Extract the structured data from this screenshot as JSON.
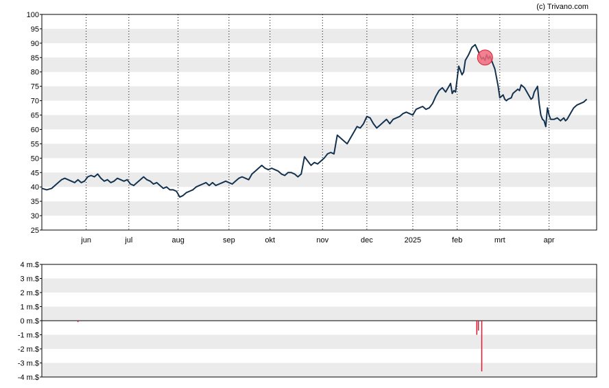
{
  "credit": "(c) Trivano.com",
  "colors": {
    "band": "#ebebeb",
    "price_line": "#12314f",
    "volume_bar": "#e0172e",
    "marker_fill": "#f06a7a",
    "marker_stroke": "#e0172e",
    "vgrid": "#000000"
  },
  "chart_data": [
    {
      "type": "line",
      "ylim": [
        25,
        100
      ],
      "yticks": [
        100,
        95,
        90,
        85,
        80,
        75,
        70,
        65,
        60,
        55,
        50,
        45,
        40,
        35,
        30,
        25
      ],
      "xlim": [
        0,
        338
      ],
      "month_ticks": [
        {
          "label": "jun",
          "x": 27
        },
        {
          "label": "jul",
          "x": 53
        },
        {
          "label": "aug",
          "x": 83
        },
        {
          "label": "sep",
          "x": 114
        },
        {
          "label": "okt",
          "x": 139
        },
        {
          "label": "nov",
          "x": 171
        },
        {
          "label": "dec",
          "x": 198
        },
        {
          "label": "2025",
          "x": 226
        },
        {
          "label": "feb",
          "x": 253
        },
        {
          "label": "mrt",
          "x": 279
        },
        {
          "label": "apr",
          "x": 309
        }
      ],
      "series": [
        {
          "points": [
            [
              0,
              39.5
            ],
            [
              3,
              39.0
            ],
            [
              6,
              39.5
            ],
            [
              8,
              40.5
            ],
            [
              10,
              41.5
            ],
            [
              12,
              42.5
            ],
            [
              14,
              43.0
            ],
            [
              16,
              42.5
            ],
            [
              18,
              42.0
            ],
            [
              20,
              41.5
            ],
            [
              22,
              42.5
            ],
            [
              24,
              41.5
            ],
            [
              26,
              42.0
            ],
            [
              28,
              43.5
            ],
            [
              30,
              44.0
            ],
            [
              32,
              43.5
            ],
            [
              34,
              44.5
            ],
            [
              36,
              43.0
            ],
            [
              38,
              42.0
            ],
            [
              40,
              42.5
            ],
            [
              42,
              41.5
            ],
            [
              44,
              42.0
            ],
            [
              46,
              43.0
            ],
            [
              48,
              42.5
            ],
            [
              50,
              42.0
            ],
            [
              52,
              42.5
            ],
            [
              54,
              41.0
            ],
            [
              56,
              40.5
            ],
            [
              58,
              41.5
            ],
            [
              60,
              42.5
            ],
            [
              62,
              43.5
            ],
            [
              64,
              42.5
            ],
            [
              66,
              42.0
            ],
            [
              68,
              41.0
            ],
            [
              70,
              41.5
            ],
            [
              72,
              40.5
            ],
            [
              74,
              39.5
            ],
            [
              76,
              40.0
            ],
            [
              78,
              39.0
            ],
            [
              80,
              39.0
            ],
            [
              82,
              38.5
            ],
            [
              84,
              36.5
            ],
            [
              86,
              37.0
            ],
            [
              88,
              38.0
            ],
            [
              90,
              38.5
            ],
            [
              92,
              39.0
            ],
            [
              94,
              40.0
            ],
            [
              96,
              40.5
            ],
            [
              98,
              41.0
            ],
            [
              100,
              41.5
            ],
            [
              102,
              40.5
            ],
            [
              104,
              41.5
            ],
            [
              106,
              40.5
            ],
            [
              108,
              41.0
            ],
            [
              110,
              41.5
            ],
            [
              112,
              42.0
            ],
            [
              114,
              41.5
            ],
            [
              116,
              41.0
            ],
            [
              118,
              42.0
            ],
            [
              120,
              43.0
            ],
            [
              122,
              43.5
            ],
            [
              124,
              43.0
            ],
            [
              126,
              42.5
            ],
            [
              128,
              44.5
            ],
            [
              130,
              45.5
            ],
            [
              132,
              46.5
            ],
            [
              134,
              47.5
            ],
            [
              136,
              46.5
            ],
            [
              138,
              46.0
            ],
            [
              140,
              46.5
            ],
            [
              142,
              46.0
            ],
            [
              144,
              45.5
            ],
            [
              146,
              44.5
            ],
            [
              148,
              44.0
            ],
            [
              150,
              45.0
            ],
            [
              152,
              45.0
            ],
            [
              154,
              44.5
            ],
            [
              156,
              43.5
            ],
            [
              158,
              44.5
            ],
            [
              160,
              50.5
            ],
            [
              162,
              49.0
            ],
            [
              164,
              47.5
            ],
            [
              166,
              48.5
            ],
            [
              168,
              48.0
            ],
            [
              170,
              49.0
            ],
            [
              172,
              50.0
            ],
            [
              174,
              51.5
            ],
            [
              176,
              52.0
            ],
            [
              178,
              51.5
            ],
            [
              180,
              58.0
            ],
            [
              182,
              57.0
            ],
            [
              184,
              56.0
            ],
            [
              186,
              55.0
            ],
            [
              188,
              57.0
            ],
            [
              190,
              59.0
            ],
            [
              192,
              61.0
            ],
            [
              194,
              60.5
            ],
            [
              196,
              62.0
            ],
            [
              198,
              64.5
            ],
            [
              200,
              64.0
            ],
            [
              202,
              62.0
            ],
            [
              204,
              60.5
            ],
            [
              206,
              61.5
            ],
            [
              208,
              62.5
            ],
            [
              210,
              63.5
            ],
            [
              212,
              62.0
            ],
            [
              214,
              63.5
            ],
            [
              216,
              64.0
            ],
            [
              218,
              64.5
            ],
            [
              220,
              65.5
            ],
            [
              222,
              66.0
            ],
            [
              224,
              65.5
            ],
            [
              226,
              65.0
            ],
            [
              228,
              67.0
            ],
            [
              230,
              67.5
            ],
            [
              232,
              68.0
            ],
            [
              234,
              67.0
            ],
            [
              236,
              67.5
            ],
            [
              238,
              69.0
            ],
            [
              240,
              71.5
            ],
            [
              242,
              73.5
            ],
            [
              244,
              74.5
            ],
            [
              246,
              73.0
            ],
            [
              248,
              75.0
            ],
            [
              249,
              76.0
            ],
            [
              250,
              72.5
            ],
            [
              251,
              73.5
            ],
            [
              252,
              73.0
            ],
            [
              254,
              82.0
            ],
            [
              256,
              79.0
            ],
            [
              257,
              80.0
            ],
            [
              258,
              84.0
            ],
            [
              260,
              86.0
            ],
            [
              262,
              88.5
            ],
            [
              264,
              89.5
            ],
            [
              266,
              87.0
            ],
            [
              267,
              85.5
            ],
            [
              268,
              84.5
            ],
            [
              269,
              85.0
            ],
            [
              270,
              84.0
            ],
            [
              271,
              86.0
            ],
            [
              272,
              84.5
            ],
            [
              273,
              85.5
            ],
            [
              274,
              84.0
            ],
            [
              276,
              81.0
            ],
            [
              277,
              78.0
            ],
            [
              278,
              75.0
            ],
            [
              279,
              71.0
            ],
            [
              280,
              71.5
            ],
            [
              281,
              72.0
            ],
            [
              282,
              70.5
            ],
            [
              283,
              70.0
            ],
            [
              284,
              70.5
            ],
            [
              286,
              71.0
            ],
            [
              287,
              72.5
            ],
            [
              288,
              73.0
            ],
            [
              290,
              74.0
            ],
            [
              291,
              73.5
            ],
            [
              292,
              75.5
            ],
            [
              294,
              74.5
            ],
            [
              296,
              72.5
            ],
            [
              298,
              70.5
            ],
            [
              299,
              71.0
            ],
            [
              300,
              73.0
            ],
            [
              302,
              75.0
            ],
            [
              303,
              69.0
            ],
            [
              304,
              65.0
            ],
            [
              305,
              63.5
            ],
            [
              306,
              63.0
            ],
            [
              307,
              61.0
            ],
            [
              308,
              67.5
            ],
            [
              309,
              65.0
            ],
            [
              310,
              63.5
            ],
            [
              312,
              63.5
            ],
            [
              314,
              64.0
            ],
            [
              316,
              63.0
            ],
            [
              317,
              63.5
            ],
            [
              318,
              64.0
            ],
            [
              319,
              63.0
            ],
            [
              320,
              63.5
            ],
            [
              322,
              65.5
            ],
            [
              324,
              67.5
            ],
            [
              326,
              68.5
            ],
            [
              328,
              69.0
            ],
            [
              330,
              69.5
            ],
            [
              332,
              70.5
            ]
          ]
        }
      ],
      "marker": {
        "x": 270,
        "y": 85
      }
    },
    {
      "type": "bar",
      "yticks": [
        "4 m.$",
        "3 m.$",
        "2 m.$",
        "1 m.$",
        "0 m.$",
        "-1 m.$",
        "-2 m.$",
        "-3 m.$",
        "-4 m.$"
      ],
      "ytick_values": [
        4,
        3,
        2,
        1,
        0,
        -1,
        -2,
        -3,
        -4
      ],
      "ylim": [
        -4,
        4
      ],
      "xlim": [
        0,
        338
      ],
      "bars": [
        {
          "x": 22,
          "value": -0.1
        },
        {
          "x": 265,
          "value": -1.0
        },
        {
          "x": 266,
          "value": -0.7
        },
        {
          "x": 268,
          "value": -3.6
        }
      ]
    }
  ]
}
